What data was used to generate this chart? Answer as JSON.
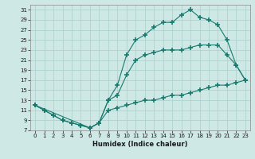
{
  "title": "",
  "xlabel": "Humidex (Indice chaleur)",
  "xlim": [
    -0.5,
    23.5
  ],
  "ylim": [
    7,
    32
  ],
  "yticks": [
    7,
    9,
    11,
    13,
    15,
    17,
    19,
    21,
    23,
    25,
    27,
    29,
    31
  ],
  "xticks": [
    0,
    1,
    2,
    3,
    4,
    5,
    6,
    7,
    8,
    9,
    10,
    11,
    12,
    13,
    14,
    15,
    16,
    17,
    18,
    19,
    20,
    21,
    22,
    23
  ],
  "line_color": "#1a7a6e",
  "bg_color": "#cde8e5",
  "grid_color": "#aacfcc",
  "line1_x": [
    0,
    1,
    2,
    3,
    4,
    5,
    6,
    7,
    8,
    9,
    10,
    11,
    12,
    13,
    14,
    15,
    16,
    17,
    18,
    19,
    20,
    21,
    22,
    23
  ],
  "line1_y": [
    12,
    11,
    10,
    9,
    8.5,
    8,
    7.5,
    8.5,
    13,
    16,
    22,
    25,
    26,
    27.5,
    28.5,
    28.5,
    30,
    31,
    29.5,
    29,
    28,
    25,
    20,
    17
  ],
  "line2_x": [
    0,
    6,
    7,
    8,
    9,
    10,
    11,
    12,
    13,
    14,
    15,
    16,
    17,
    18,
    19,
    20,
    21,
    22,
    23
  ],
  "line2_y": [
    12,
    7.5,
    8.5,
    13,
    14,
    18,
    21,
    22,
    22.5,
    23,
    23,
    23,
    23.5,
    24,
    24,
    24,
    22,
    20,
    17
  ],
  "line3_x": [
    0,
    1,
    2,
    3,
    4,
    5,
    6,
    7,
    8,
    9,
    10,
    11,
    12,
    13,
    14,
    15,
    16,
    17,
    18,
    19,
    20,
    21,
    22,
    23
  ],
  "line3_y": [
    12,
    11,
    10,
    9,
    8.5,
    8,
    7.5,
    8.5,
    11,
    11.5,
    12,
    12.5,
    13,
    13,
    13.5,
    14,
    14,
    14.5,
    15,
    15.5,
    16,
    16,
    16.5,
    17
  ]
}
